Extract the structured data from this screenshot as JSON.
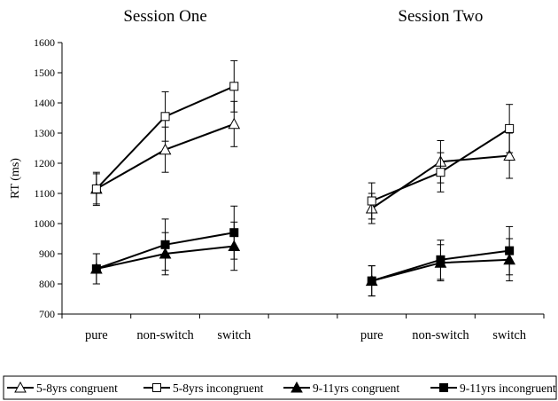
{
  "chart_data": {
    "type": "line",
    "ylabel": "RT (ms)",
    "ylim": [
      700,
      1600
    ],
    "yticks": [
      700,
      800,
      900,
      1000,
      1100,
      1200,
      1300,
      1400,
      1500,
      1600
    ],
    "legend_position": "bottom",
    "panels": [
      {
        "title": "Session One",
        "categories": [
          "pure",
          "non-switch",
          "switch"
        ],
        "series": [
          {
            "name": "5-8yrs congruent",
            "marker": "triangle-open",
            "values": [
              1115,
              1245,
              1330
            ],
            "error": [
              50,
              75,
              75
            ]
          },
          {
            "name": "5-8yrs incongruent",
            "marker": "square-open",
            "values": [
              1115,
              1355,
              1455
            ],
            "error": [
              55,
              82,
              85
            ]
          },
          {
            "name": "9-11yrs congruent",
            "marker": "triangle-filled",
            "values": [
              850,
              900,
              925
            ],
            "error": [
              50,
              70,
              80
            ]
          },
          {
            "name": "9-11yrs incongruent",
            "marker": "square-filled",
            "values": [
              850,
              930,
              970
            ],
            "error": [
              50,
              85,
              88
            ]
          }
        ]
      },
      {
        "title": "Session Two",
        "categories": [
          "pure",
          "non-switch",
          "switch"
        ],
        "series": [
          {
            "name": "5-8yrs congruent",
            "marker": "triangle-open",
            "values": [
              1050,
              1205,
              1225
            ],
            "error": [
              50,
              70,
              75
            ]
          },
          {
            "name": "5-8yrs incongruent",
            "marker": "square-open",
            "values": [
              1075,
              1170,
              1315
            ],
            "error": [
              60,
              65,
              80
            ]
          },
          {
            "name": "9-11yrs congruent",
            "marker": "triangle-filled",
            "values": [
              810,
              870,
              880
            ],
            "error": [
              50,
              60,
              70
            ]
          },
          {
            "name": "9-11yrs incongruent",
            "marker": "square-filled",
            "values": [
              810,
              880,
              910
            ],
            "error": [
              50,
              65,
              80
            ]
          }
        ]
      }
    ]
  }
}
